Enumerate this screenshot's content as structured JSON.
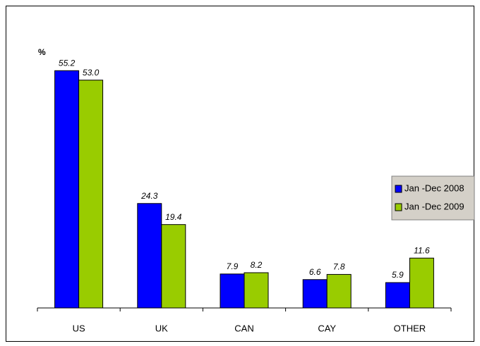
{
  "chart_data": {
    "type": "bar",
    "y_label": "%",
    "categories": [
      "US",
      "UK",
      "CAN",
      "CAY",
      "OTHER"
    ],
    "series": [
      {
        "name": "Jan -Dec 2008",
        "color": "#0000ff",
        "values": [
          55.2,
          24.3,
          7.9,
          6.6,
          5.9
        ],
        "value_labels": [
          "55.2",
          "24.3",
          "7.9",
          "6.6",
          "5.9"
        ]
      },
      {
        "name": "Jan -Dec 2009",
        "color": "#99cc00",
        "values": [
          53,
          19.4,
          8.2,
          7.8,
          11.6
        ],
        "value_labels": [
          "53.0",
          "19.4",
          "8.2",
          "7.8",
          "11.6"
        ]
      }
    ],
    "ylim": [
      0,
      60
    ],
    "legend": "right"
  }
}
